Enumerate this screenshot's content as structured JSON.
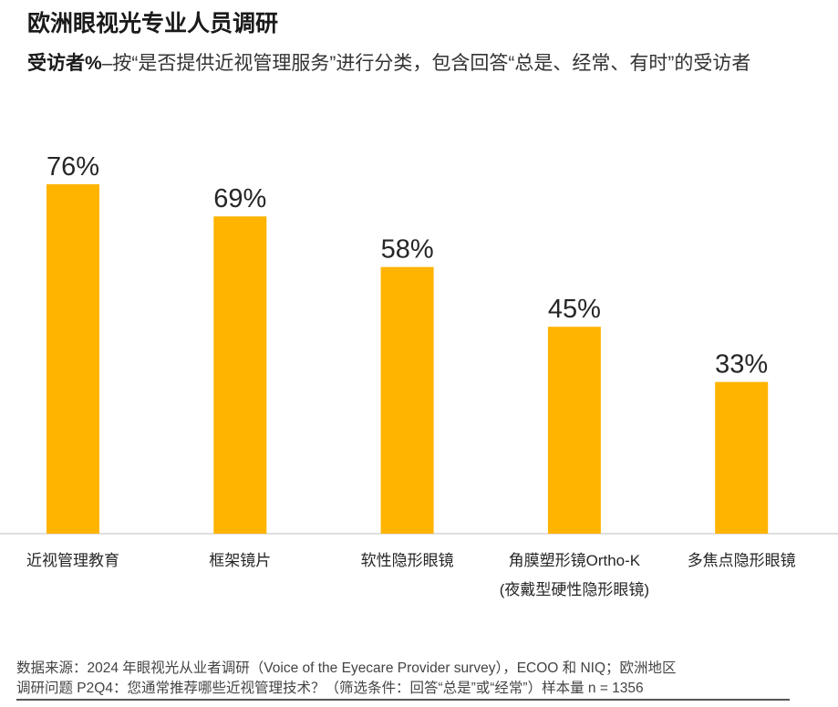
{
  "title": "欧洲眼视光专业人员调研",
  "subtitle": {
    "bold": "受访者%",
    "text": "–按“是否提供近视管理服务”进行分类，包含回答“总是、经常、有时”的受访者"
  },
  "chart_data": {
    "type": "bar",
    "categories": [
      "近视管理教育",
      "框架镜片",
      "软性隐形眼镜",
      "角膜塑形镜Ortho-K\n(夜戴型硬性隐形眼镜)",
      "多焦点隐形眼镜"
    ],
    "values": [
      76,
      69,
      58,
      45,
      33
    ],
    "data_labels": [
      "76%",
      "69%",
      "58%",
      "45%",
      "33%"
    ],
    "unit": "%",
    "ylim": [
      0,
      100
    ],
    "grid": false,
    "bar_color": "#FFB400"
  },
  "footer": {
    "source": "数据来源：2024 年眼视光从业者调研（Voice of the Eyecare Provider survey），ECOO 和 NIQ；欧洲地区",
    "question": "调研问题 P2Q4：您通常推荐哪些近视管理技术？（筛选条件：回答“总是”或“经常”）样本量 n = 1356"
  }
}
